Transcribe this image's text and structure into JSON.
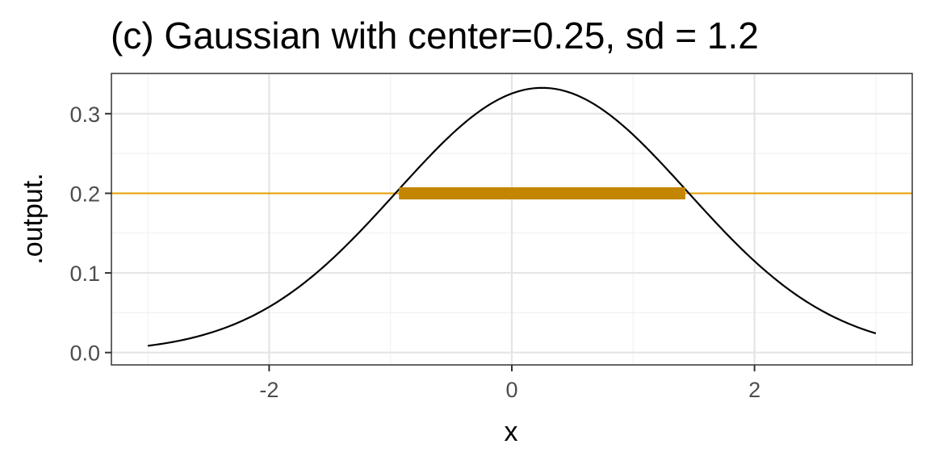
{
  "chart_data": {
    "type": "line",
    "title": "(c) Gaussian with center=0.25, sd = 1.2",
    "xlabel": "x",
    "ylabel": ".output.",
    "xlim": [
      -3.3,
      3.3
    ],
    "ylim": [
      -0.0155,
      0.3505
    ],
    "x_ticks": [
      -2,
      0,
      2
    ],
    "x_tick_labels": [
      "-2",
      "0",
      "2"
    ],
    "y_ticks": [
      0.0,
      0.1,
      0.2,
      0.3
    ],
    "y_tick_labels": [
      "0.0",
      "0.1",
      "0.2",
      "0.3"
    ],
    "grid": true,
    "legend": "none",
    "series": [
      {
        "type": "gaussian-curve",
        "center": 0.25,
        "sd": 1.2,
        "x_range": [
          -3,
          3
        ],
        "color": "#000000"
      },
      {
        "type": "hline",
        "y": 0.2,
        "color": "#E69F00"
      },
      {
        "type": "segment",
        "x": [
          -0.93,
          1.43
        ],
        "y": 0.2,
        "color": "#C28600"
      }
    ]
  },
  "colors": {
    "panel_border": "#333333",
    "grid_major": "#e5e5e5",
    "grid_minor": "#f2f2f2",
    "tick": "#333333",
    "tick_label": "#4d4d4d"
  }
}
